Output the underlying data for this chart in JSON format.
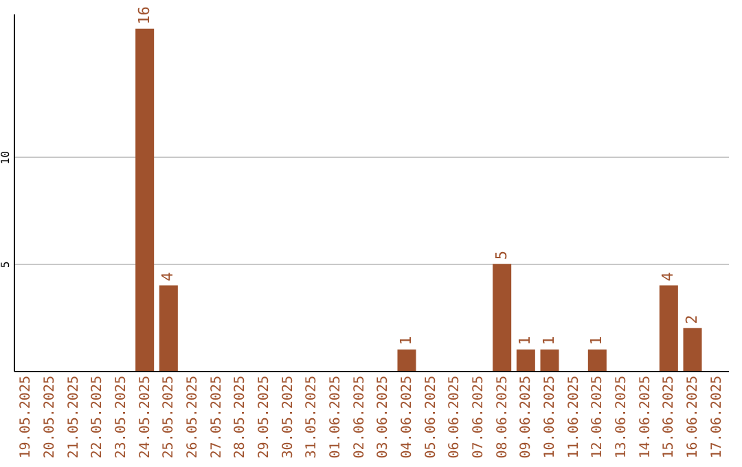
{
  "chart_data": {
    "type": "bar",
    "categories": [
      "19.05.2025",
      "20.05.2025",
      "21.05.2025",
      "22.05.2025",
      "23.05.2025",
      "24.05.2025",
      "25.05.2025",
      "26.05.2025",
      "27.05.2025",
      "28.05.2025",
      "29.05.2025",
      "30.05.2025",
      "31.05.2025",
      "01.06.2025",
      "02.06.2025",
      "03.06.2025",
      "04.06.2025",
      "05.06.2025",
      "06.06.2025",
      "07.06.2025",
      "08.06.2025",
      "09.06.2025",
      "10.06.2025",
      "11.06.2025",
      "12.06.2025",
      "13.06.2025",
      "14.06.2025",
      "15.06.2025",
      "16.06.2025",
      "17.06.2025"
    ],
    "values": [
      0,
      0,
      0,
      0,
      0,
      16,
      4,
      0,
      0,
      0,
      0,
      0,
      0,
      0,
      0,
      0,
      1,
      0,
      0,
      0,
      5,
      1,
      1,
      0,
      1,
      0,
      0,
      4,
      2,
      0
    ],
    "value_labels": [
      null,
      null,
      null,
      null,
      null,
      "16",
      "4",
      null,
      null,
      null,
      null,
      null,
      null,
      null,
      null,
      null,
      "1",
      null,
      null,
      null,
      "5",
      "1",
      "1",
      null,
      "1",
      null,
      null,
      "4",
      "2",
      null
    ],
    "color": "#a0522d",
    "ylim": [
      0,
      16.7
    ],
    "yticks": [
      5,
      10
    ],
    "grid": "y"
  }
}
